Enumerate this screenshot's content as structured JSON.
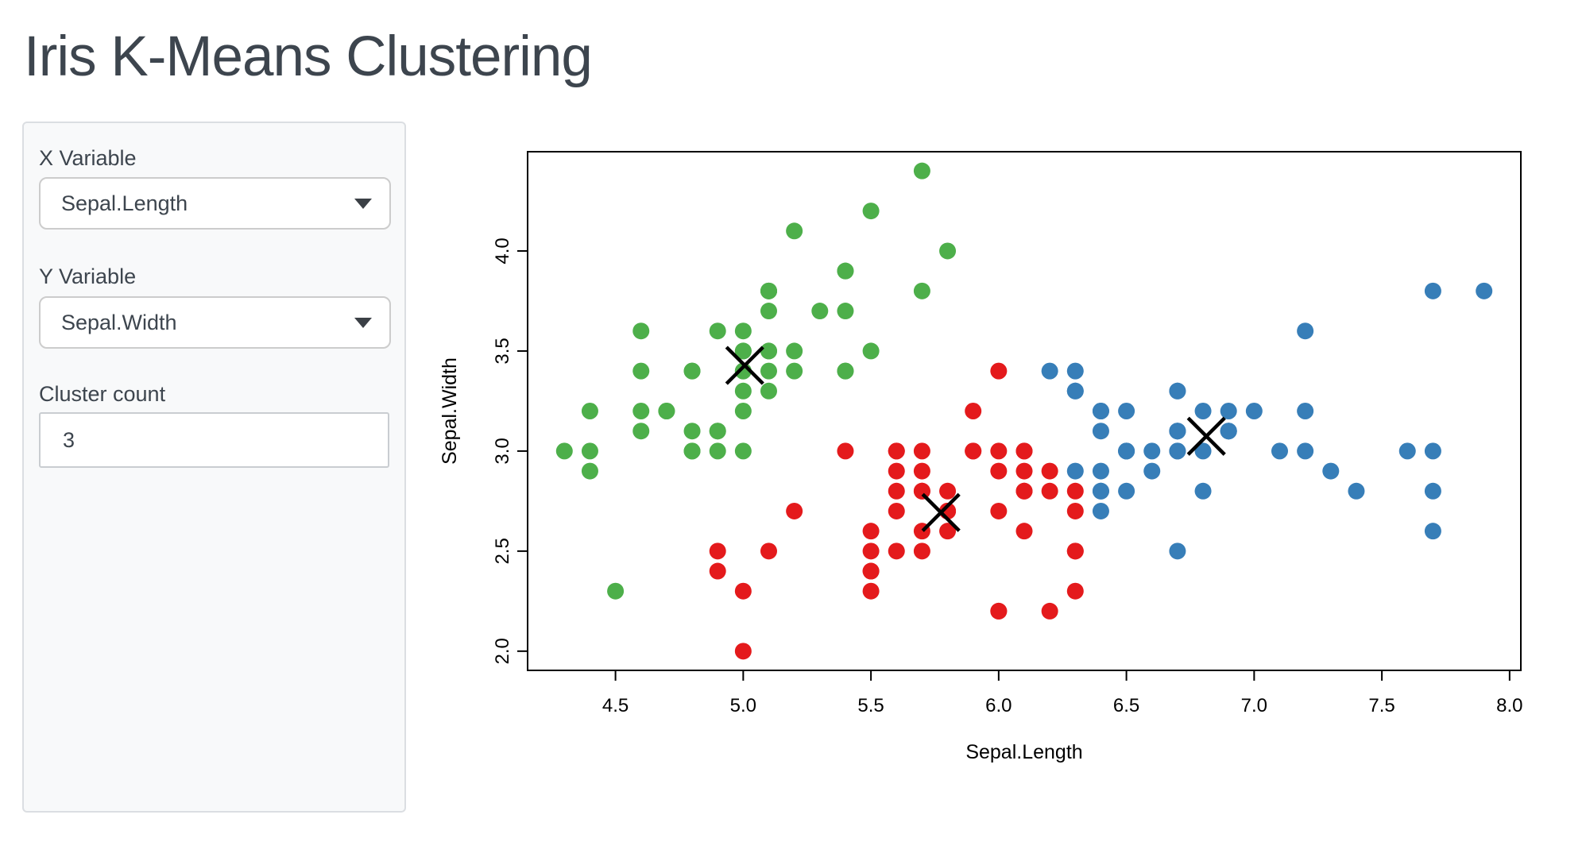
{
  "app": {
    "title": "Iris K-Means Clustering"
  },
  "sidebar": {
    "x_variable": {
      "label": "X Variable",
      "value": "Sepal.Length"
    },
    "y_variable": {
      "label": "Y Variable",
      "value": "Sepal.Width"
    },
    "cluster_count": {
      "label": "Cluster count",
      "value": "3"
    }
  },
  "chart_data": {
    "type": "scatter",
    "xlabel": "Sepal.Length",
    "ylabel": "Sepal.Width",
    "xlim": [
      4.156,
      8.044
    ],
    "ylim": [
      1.904,
      4.496
    ],
    "xticks": [
      "4.5",
      "5.0",
      "5.5",
      "6.0",
      "6.5",
      "7.0",
      "7.5",
      "8.0"
    ],
    "yticks": [
      "2.0",
      "2.5",
      "3.0",
      "3.5",
      "4.0"
    ],
    "grid": false,
    "legend": "none",
    "center_marker": "X",
    "center_color": "#000000",
    "clusters": [
      {
        "name": "cluster-1",
        "color": "#E41A1C",
        "center": [
          5.774,
          2.693
        ],
        "points": [
          [
            5.5,
            2.3
          ],
          [
            5.7,
            2.8
          ],
          [
            4.9,
            2.4
          ],
          [
            5.2,
            2.7
          ],
          [
            5.0,
            2.0
          ],
          [
            5.9,
            3.0
          ],
          [
            6.0,
            2.2
          ],
          [
            6.1,
            2.9
          ],
          [
            5.6,
            2.9
          ],
          [
            5.6,
            3.0
          ],
          [
            5.8,
            2.7
          ],
          [
            6.2,
            2.2
          ],
          [
            5.6,
            2.5
          ],
          [
            5.9,
            3.2
          ],
          [
            6.1,
            2.8
          ],
          [
            6.3,
            2.5
          ],
          [
            6.1,
            2.8
          ],
          [
            6.0,
            2.9
          ],
          [
            5.7,
            2.6
          ],
          [
            5.5,
            2.4
          ],
          [
            5.5,
            2.4
          ],
          [
            5.8,
            2.7
          ],
          [
            6.0,
            2.7
          ],
          [
            5.4,
            3.0
          ],
          [
            6.0,
            3.4
          ],
          [
            6.3,
            2.3
          ],
          [
            5.6,
            3.0
          ],
          [
            5.5,
            2.5
          ],
          [
            5.5,
            2.6
          ],
          [
            6.1,
            3.0
          ],
          [
            5.8,
            2.6
          ],
          [
            5.0,
            2.3
          ],
          [
            5.6,
            2.7
          ],
          [
            5.7,
            3.0
          ],
          [
            5.7,
            2.9
          ],
          [
            6.2,
            2.9
          ],
          [
            5.1,
            2.5
          ],
          [
            5.7,
            2.8
          ],
          [
            5.8,
            2.7
          ],
          [
            4.9,
            2.5
          ],
          [
            5.7,
            2.5
          ],
          [
            5.8,
            2.8
          ],
          [
            6.0,
            2.2
          ],
          [
            5.6,
            2.8
          ],
          [
            6.3,
            2.7
          ],
          [
            6.2,
            2.8
          ],
          [
            6.1,
            3.0
          ],
          [
            6.3,
            2.8
          ],
          [
            6.1,
            2.6
          ],
          [
            6.0,
            3.0
          ],
          [
            5.8,
            2.7
          ],
          [
            6.3,
            2.5
          ],
          [
            5.9,
            3.0
          ]
        ]
      },
      {
        "name": "cluster-2",
        "color": "#377EB8",
        "center": [
          6.813,
          3.074
        ],
        "points": [
          [
            7.0,
            3.2
          ],
          [
            6.4,
            3.2
          ],
          [
            6.9,
            3.1
          ],
          [
            6.5,
            2.8
          ],
          [
            6.3,
            3.3
          ],
          [
            6.6,
            2.9
          ],
          [
            6.7,
            3.1
          ],
          [
            6.4,
            2.9
          ],
          [
            6.6,
            3.0
          ],
          [
            6.8,
            2.8
          ],
          [
            6.7,
            3.0
          ],
          [
            6.7,
            3.1
          ],
          [
            6.3,
            3.3
          ],
          [
            7.1,
            3.0
          ],
          [
            6.3,
            2.9
          ],
          [
            6.5,
            3.0
          ],
          [
            7.6,
            3.0
          ],
          [
            7.3,
            2.9
          ],
          [
            6.7,
            2.5
          ],
          [
            7.2,
            3.6
          ],
          [
            6.5,
            3.2
          ],
          [
            6.4,
            2.7
          ],
          [
            6.8,
            3.0
          ],
          [
            6.4,
            3.2
          ],
          [
            6.5,
            3.0
          ],
          [
            7.7,
            3.8
          ],
          [
            7.7,
            2.6
          ],
          [
            6.9,
            3.2
          ],
          [
            7.7,
            2.8
          ],
          [
            6.7,
            3.3
          ],
          [
            7.2,
            3.2
          ],
          [
            6.4,
            2.8
          ],
          [
            7.2,
            3.0
          ],
          [
            7.4,
            2.8
          ],
          [
            7.9,
            3.8
          ],
          [
            6.4,
            2.8
          ],
          [
            7.7,
            3.0
          ],
          [
            6.3,
            3.4
          ],
          [
            6.4,
            3.1
          ],
          [
            6.9,
            3.1
          ],
          [
            6.7,
            3.1
          ],
          [
            6.9,
            3.1
          ],
          [
            6.8,
            3.2
          ],
          [
            6.7,
            3.3
          ],
          [
            6.7,
            3.0
          ],
          [
            6.5,
            3.0
          ],
          [
            6.2,
            3.4
          ]
        ]
      },
      {
        "name": "cluster-3",
        "color": "#4DAF4A",
        "center": [
          5.006,
          3.428
        ],
        "points": [
          [
            5.1,
            3.5
          ],
          [
            4.9,
            3.0
          ],
          [
            4.7,
            3.2
          ],
          [
            4.6,
            3.1
          ],
          [
            5.0,
            3.6
          ],
          [
            5.4,
            3.9
          ],
          [
            4.6,
            3.4
          ],
          [
            5.0,
            3.4
          ],
          [
            4.4,
            2.9
          ],
          [
            4.9,
            3.1
          ],
          [
            5.4,
            3.7
          ],
          [
            4.8,
            3.4
          ],
          [
            4.8,
            3.0
          ],
          [
            4.3,
            3.0
          ],
          [
            5.8,
            4.0
          ],
          [
            5.7,
            4.4
          ],
          [
            5.4,
            3.9
          ],
          [
            5.1,
            3.5
          ],
          [
            5.7,
            3.8
          ],
          [
            5.1,
            3.8
          ],
          [
            5.4,
            3.4
          ],
          [
            5.1,
            3.7
          ],
          [
            4.6,
            3.6
          ],
          [
            5.1,
            3.3
          ],
          [
            4.8,
            3.4
          ],
          [
            5.0,
            3.0
          ],
          [
            5.0,
            3.4
          ],
          [
            5.2,
            3.5
          ],
          [
            5.2,
            3.4
          ],
          [
            4.7,
            3.2
          ],
          [
            4.8,
            3.1
          ],
          [
            5.4,
            3.4
          ],
          [
            5.2,
            4.1
          ],
          [
            5.5,
            4.2
          ],
          [
            4.9,
            3.1
          ],
          [
            5.0,
            3.2
          ],
          [
            5.5,
            3.5
          ],
          [
            4.9,
            3.6
          ],
          [
            4.4,
            3.0
          ],
          [
            5.1,
            3.4
          ],
          [
            5.0,
            3.5
          ],
          [
            4.5,
            2.3
          ],
          [
            4.4,
            3.2
          ],
          [
            5.0,
            3.5
          ],
          [
            5.1,
            3.8
          ],
          [
            4.8,
            3.0
          ],
          [
            5.1,
            3.8
          ],
          [
            4.6,
            3.2
          ],
          [
            5.3,
            3.7
          ],
          [
            5.0,
            3.3
          ]
        ]
      }
    ]
  }
}
